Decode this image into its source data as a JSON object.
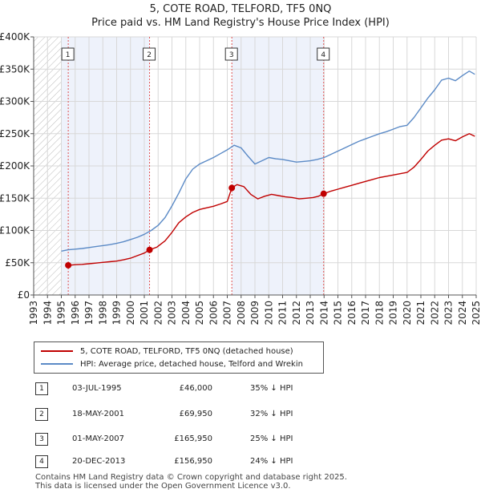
{
  "header": {
    "title": "5, COTE ROAD, TELFORD, TF5 0NQ",
    "subtitle": "Price paid vs. HM Land Registry's House Price Index (HPI)"
  },
  "chart_data": {
    "type": "line",
    "title": "5, COTE ROAD, TELFORD, TF5 0NQ",
    "subtitle": "Price paid vs. HM Land Registry's House Price Index (HPI)",
    "xlabel": "",
    "ylabel": "",
    "xlim": [
      1993,
      2025
    ],
    "ylim": [
      0,
      400000
    ],
    "x_ticks": [
      "1993",
      "1994",
      "1995",
      "1996",
      "1997",
      "1998",
      "1999",
      "2000",
      "2001",
      "2002",
      "2003",
      "2004",
      "2005",
      "2006",
      "2007",
      "2008",
      "2009",
      "2010",
      "2011",
      "2012",
      "2013",
      "2014",
      "2015",
      "2016",
      "2017",
      "2018",
      "2019",
      "2020",
      "2021",
      "2022",
      "2023",
      "2024",
      "2025"
    ],
    "y_ticks": [
      {
        "value": 0,
        "label": "£0"
      },
      {
        "value": 50000,
        "label": "£50K"
      },
      {
        "value": 100000,
        "label": "£100K"
      },
      {
        "value": 150000,
        "label": "£150K"
      },
      {
        "value": 200000,
        "label": "£200K"
      },
      {
        "value": 250000,
        "label": "£250K"
      },
      {
        "value": 300000,
        "label": "£300K"
      },
      {
        "value": 350000,
        "label": "£350K"
      },
      {
        "value": 400000,
        "label": "£400K"
      }
    ],
    "grid": true,
    "data_start": 1995.0,
    "shaded_periods": [
      [
        1995.0,
        1995.5
      ],
      [
        1995.5,
        2001.38
      ],
      [
        2007.33,
        2013.97
      ]
    ],
    "series": [
      {
        "name": "HPI: Average price, detached house, Telford and Wrekin",
        "color": "#5b8ac6",
        "x": [
          1995.0,
          1995.5,
          1996.0,
          1996.5,
          1997.0,
          1997.5,
          1998.0,
          1998.5,
          1999.0,
          1999.5,
          2000.0,
          2000.5,
          2001.0,
          2001.5,
          2002.0,
          2002.5,
          2003.0,
          2003.5,
          2004.0,
          2004.5,
          2005.0,
          2005.5,
          2006.0,
          2006.5,
          2007.0,
          2007.5,
          2008.0,
          2008.5,
          2009.0,
          2009.5,
          2010.0,
          2010.5,
          2011.0,
          2011.5,
          2012.0,
          2012.5,
          2013.0,
          2013.5,
          2014.0,
          2014.5,
          2015.0,
          2015.5,
          2016.0,
          2016.5,
          2017.0,
          2017.5,
          2018.0,
          2018.5,
          2019.0,
          2019.5,
          2020.0,
          2020.5,
          2021.0,
          2021.5,
          2022.0,
          2022.5,
          2023.0,
          2023.5,
          2024.0,
          2024.5,
          2024.9
        ],
        "y": [
          68000,
          70000,
          71000,
          72000,
          73500,
          75000,
          76500,
          78000,
          80000,
          82500,
          86000,
          89500,
          94000,
          100000,
          108000,
          120000,
          138000,
          158000,
          180000,
          195000,
          203000,
          208000,
          213000,
          219000,
          225000,
          232000,
          228000,
          215000,
          203000,
          208000,
          213000,
          211000,
          210000,
          208000,
          206000,
          207000,
          208000,
          210000,
          213000,
          218000,
          223000,
          228000,
          233000,
          238000,
          242000,
          246000,
          250000,
          253000,
          257000,
          261000,
          263000,
          275000,
          290000,
          305000,
          318000,
          333000,
          336000,
          332000,
          340000,
          347000,
          342000
        ]
      },
      {
        "name": "5, COTE ROAD, TELFORD, TF5 0NQ (detached house)",
        "color": "#c00000",
        "x": [
          1995.5,
          1996.0,
          1996.5,
          1997.0,
          1997.5,
          1998.0,
          1998.5,
          1999.0,
          1999.5,
          2000.0,
          2000.5,
          2001.0,
          2001.38,
          2001.9,
          2002.5,
          2003.0,
          2003.5,
          2004.0,
          2004.5,
          2005.0,
          2005.5,
          2006.0,
          2006.5,
          2007.0,
          2007.33,
          2007.7,
          2008.2,
          2008.7,
          2009.2,
          2009.7,
          2010.2,
          2010.7,
          2011.2,
          2011.7,
          2012.2,
          2012.7,
          2013.2,
          2013.6,
          2013.97,
          2014.5,
          2015.0,
          2015.5,
          2016.0,
          2016.5,
          2017.0,
          2017.5,
          2018.0,
          2018.5,
          2019.0,
          2019.5,
          2020.0,
          2020.5,
          2021.0,
          2021.5,
          2022.0,
          2022.5,
          2023.0,
          2023.5,
          2024.0,
          2024.5,
          2024.9
        ],
        "y": [
          46000,
          47000,
          47500,
          48500,
          49500,
          50500,
          51500,
          52500,
          54500,
          57000,
          61000,
          65000,
          69950,
          74000,
          84000,
          97000,
          112000,
          121000,
          128000,
          132500,
          135000,
          137500,
          141000,
          145000,
          165950,
          171000,
          168000,
          156000,
          149000,
          153000,
          156000,
          154000,
          152000,
          151000,
          149000,
          150000,
          151000,
          153000,
          156950,
          161000,
          164000,
          167000,
          170000,
          173000,
          176000,
          179000,
          182000,
          184000,
          186000,
          188000,
          190000,
          198000,
          210000,
          223000,
          232000,
          240000,
          242000,
          239000,
          245000,
          250000,
          246000
        ]
      }
    ],
    "sales": [
      {
        "n": "1",
        "x": 1995.5,
        "price": 46000
      },
      {
        "n": "2",
        "x": 2001.38,
        "price": 69950
      },
      {
        "n": "3",
        "x": 2007.33,
        "price": 165950
      },
      {
        "n": "4",
        "x": 2013.97,
        "price": 156950
      }
    ]
  },
  "legend": {
    "items": [
      {
        "label": "5, COTE ROAD, TELFORD, TF5 0NQ (detached house)",
        "color": "#c00000"
      },
      {
        "label": "HPI: Average price, detached house, Telford and Wrekin",
        "color": "#5b8ac6"
      }
    ]
  },
  "sales_table": [
    {
      "n": "1",
      "date": "03-JUL-1995",
      "price": "£46,000",
      "hpi": "35% ↓ HPI"
    },
    {
      "n": "2",
      "date": "18-MAY-2001",
      "price": "£69,950",
      "hpi": "32% ↓ HPI"
    },
    {
      "n": "3",
      "date": "01-MAY-2007",
      "price": "£165,950",
      "hpi": "25% ↓ HPI"
    },
    {
      "n": "4",
      "date": "20-DEC-2013",
      "price": "£156,950",
      "hpi": "24% ↓ HPI"
    }
  ],
  "footer": {
    "line1": "Contains HM Land Registry data © Crown copyright and database right 2025.",
    "line2": "This data is licensed under the Open Government Licence v3.0."
  }
}
